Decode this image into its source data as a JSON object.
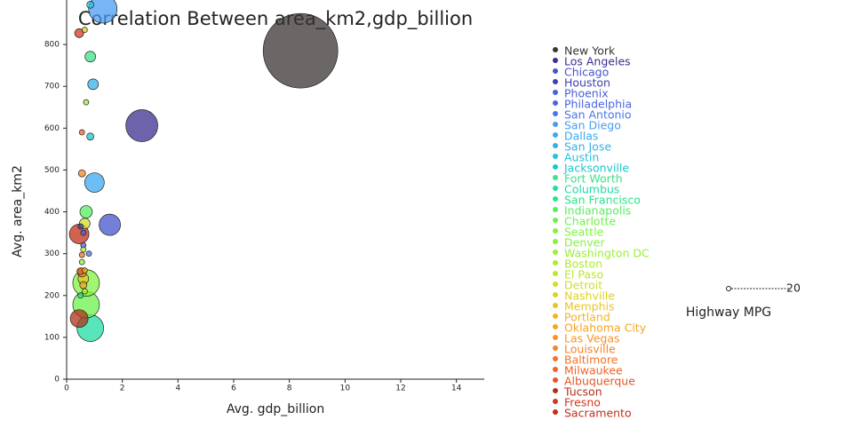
{
  "chart_data": {
    "type": "bubble",
    "title": "Correlation Between area_km2,gdp_billion",
    "x_label": "Avg. gdp_billion",
    "y_label": "Avg. area_km2",
    "xlim": [
      0,
      15
    ],
    "ylim": [
      0,
      900
    ],
    "xticks": [
      0,
      2,
      4,
      6,
      8,
      10,
      12,
      14
    ],
    "yticks": [
      0,
      100,
      200,
      300,
      400,
      500,
      600,
      700,
      800
    ],
    "size_legend": {
      "title": "Highway MPG",
      "value": 20
    },
    "series": [
      {
        "name": "New York",
        "color": "#3a3434",
        "x": [
          8.4
        ],
        "values": [
          785
        ],
        "sizes": [
          5625
        ]
      },
      {
        "name": "Los Angeles",
        "color": "#3b2f8f",
        "x": [
          2.7
        ],
        "values": [
          606
        ],
        "sizes": [
          1030
        ]
      },
      {
        "name": "Chicago",
        "color": "#4554cc",
        "x": [
          1.55
        ],
        "values": [
          369
        ],
        "sizes": [
          460
        ]
      },
      {
        "name": "Houston",
        "color": "#3f3fb0",
        "x": [
          0.5
        ],
        "values": [
          365
        ],
        "sizes": [
          29
        ]
      },
      {
        "name": "Phoenix",
        "color": "#4a5fd8",
        "x": [
          0.6
        ],
        "values": [
          350
        ],
        "sizes": [
          29
        ]
      },
      {
        "name": "Philadelphia",
        "color": "#4a66e0",
        "x": [
          0.6
        ],
        "values": [
          320
        ],
        "sizes": [
          29
        ]
      },
      {
        "name": "San Antonio",
        "color": "#4776ec",
        "x": [
          0.8
        ],
        "values": [
          300
        ],
        "sizes": [
          29
        ]
      },
      {
        "name": "San Diego",
        "color": "#4a9cf2",
        "x": [
          1.3
        ],
        "values": [
          885
        ],
        "sizes": [
          816
        ]
      },
      {
        "name": "Dallas",
        "color": "#3ca8f0",
        "x": [
          1.0
        ],
        "values": [
          470
        ],
        "sizes": [
          386
        ]
      },
      {
        "name": "San Jose",
        "color": "#33b0ea",
        "x": [
          0.95
        ],
        "values": [
          705
        ],
        "sizes": [
          115
        ]
      },
      {
        "name": "Austin",
        "color": "#28c0dc",
        "x": [
          0.85
        ],
        "values": [
          895
        ],
        "sizes": [
          50
        ]
      },
      {
        "name": "Jacksonville",
        "color": "#1ec6cc",
        "x": [
          0.85
        ],
        "values": [
          580
        ],
        "sizes": [
          51
        ]
      },
      {
        "name": "Fort Worth",
        "color": "#3fe08a",
        "x": [
          0.85
        ],
        "values": [
          771
        ],
        "sizes": [
          115
        ]
      },
      {
        "name": "Columbus",
        "color": "#1fdca2",
        "x": [
          0.85
        ],
        "values": [
          122
        ],
        "sizes": [
          718
        ]
      },
      {
        "name": "San Francisco",
        "color": "#2ce48a",
        "x": [
          0.5
        ],
        "values": [
          200
        ],
        "sizes": [
          29
        ]
      },
      {
        "name": "Indianapolis",
        "color": "#55ef5d",
        "x": [
          0.7
        ],
        "values": [
          400
        ],
        "sizes": [
          156
        ]
      },
      {
        "name": "Charlotte",
        "color": "#6cf24c",
        "x": [
          0.7
        ],
        "values": [
          178
        ],
        "sizes": [
          718
        ]
      },
      {
        "name": "Seattle",
        "color": "#82f33f",
        "x": [
          0.7
        ],
        "values": [
          230
        ],
        "sizes": [
          718
        ]
      },
      {
        "name": "Denver",
        "color": "#82f33f",
        "x": [
          0.55
        ],
        "values": [
          280
        ],
        "sizes": [
          29
        ]
      },
      {
        "name": "Washington DC",
        "color": "#98f136",
        "x": [
          0.7
        ],
        "values": [
          662
        ],
        "sizes": [
          29
        ]
      },
      {
        "name": "Boston",
        "color": "#abed30",
        "x": [
          0.6
        ],
        "values": [
          310
        ],
        "sizes": [
          29
        ]
      },
      {
        "name": "El Paso",
        "color": "#bde72c",
        "x": [
          0.65
        ],
        "values": [
          210
        ],
        "sizes": [
          29
        ]
      },
      {
        "name": "Detroit",
        "color": "#cede29",
        "x": [
          0.65
        ],
        "values": [
          372
        ],
        "sizes": [
          115
        ]
      },
      {
        "name": "Nashville",
        "color": "#ddd227",
        "x": [
          0.65
        ],
        "values": [
          835
        ],
        "sizes": [
          29
        ]
      },
      {
        "name": "Memphis",
        "color": "#e9c426",
        "x": [
          0.6
        ],
        "values": [
          240
        ],
        "sizes": [
          115
        ]
      },
      {
        "name": "Portland",
        "color": "#f2b426",
        "x": [
          0.65
        ],
        "values": [
          260
        ],
        "sizes": [
          29
        ]
      },
      {
        "name": "Oklahoma City",
        "color": "#f7a426",
        "x": [
          0.6
        ],
        "values": [
          225
        ],
        "sizes": [
          51
        ]
      },
      {
        "name": "Las Vegas",
        "color": "#f99326",
        "x": [
          0.55
        ],
        "values": [
          255
        ],
        "sizes": [
          80
        ]
      },
      {
        "name": "Louisville",
        "color": "#f88326",
        "x": [
          0.55
        ],
        "values": [
          492
        ],
        "sizes": [
          51
        ]
      },
      {
        "name": "Baltimore",
        "color": "#f57326",
        "x": [
          0.55
        ],
        "values": [
          297
        ],
        "sizes": [
          29
        ]
      },
      {
        "name": "Milwaukee",
        "color": "#f06325",
        "x": [
          0.55
        ],
        "values": [
          590
        ],
        "sizes": [
          29
        ]
      },
      {
        "name": "Albuquerque",
        "color": "#e85423",
        "x": [
          0.5
        ],
        "values": [
          258
        ],
        "sizes": [
          51
        ]
      },
      {
        "name": "Tucson",
        "color": "#b03018",
        "x": [
          0.45
        ],
        "values": [
          145
        ],
        "sizes": [
          319
        ]
      },
      {
        "name": "Fresno",
        "color": "#d2391c",
        "x": [
          0.45
        ],
        "values": [
          827
        ],
        "sizes": [
          80
        ]
      },
      {
        "name": "Sacramento",
        "color": "#c42d17",
        "x": [
          0.45
        ],
        "values": [
          347
        ],
        "sizes": [
          386
        ]
      }
    ]
  }
}
